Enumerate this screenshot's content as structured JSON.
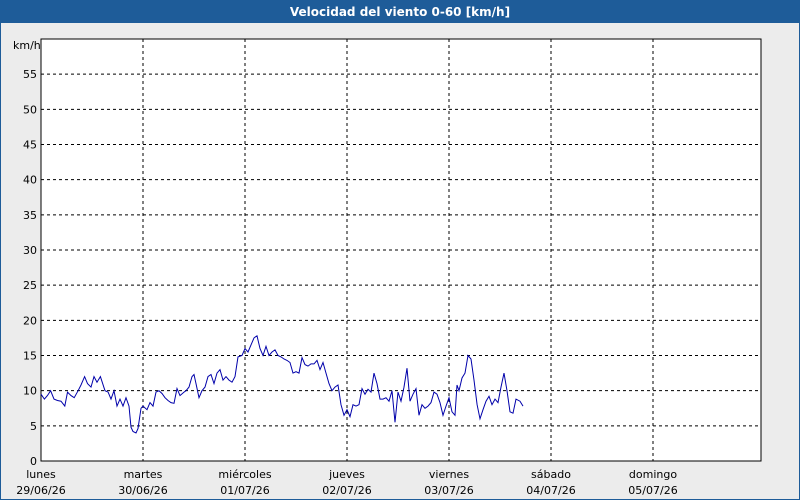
{
  "title": "Velocidad del viento 0-60 [km/h]",
  "colors": {
    "title_bg": "#1e5c99",
    "title_text": "#ffffff",
    "background": "#ececec",
    "plot_bg": "#ffffff",
    "series": "#0000aa",
    "grid": "#000000"
  },
  "chart_data": {
    "type": "line",
    "title": "Velocidad del viento 0-60 [km/h]",
    "ylabel": "km/h",
    "xlabel": "",
    "ylim": [
      0,
      60
    ],
    "yticks": [
      0,
      5,
      10,
      15,
      20,
      25,
      30,
      35,
      40,
      45,
      50,
      55
    ],
    "xlim": [
      0,
      7
    ],
    "grid": true,
    "day_labels": [
      {
        "day": "lunes",
        "date": "29/06/26",
        "x": 0
      },
      {
        "day": "martes",
        "date": "30/06/26",
        "x": 1
      },
      {
        "day": "miércoles",
        "date": "01/07/26",
        "x": 2
      },
      {
        "day": "jueves",
        "date": "02/07/26",
        "x": 3
      },
      {
        "day": "viernes",
        "date": "03/07/26",
        "x": 4
      },
      {
        "day": "sábado",
        "date": "04/07/26",
        "x": 5
      },
      {
        "day": "domingo",
        "date": "05/07/26",
        "x": 6
      }
    ],
    "series": [
      {
        "points": [
          [
            0.0,
            9.5
          ],
          [
            0.033,
            8.8
          ],
          [
            0.063,
            9.3
          ],
          [
            0.094,
            10.0
          ],
          [
            0.127,
            8.8
          ],
          [
            0.162,
            8.6
          ],
          [
            0.196,
            8.5
          ],
          [
            0.233,
            7.8
          ],
          [
            0.26,
            9.8
          ],
          [
            0.294,
            9.3
          ],
          [
            0.325,
            9.0
          ],
          [
            0.364,
            10.0
          ],
          [
            0.392,
            10.8
          ],
          [
            0.427,
            12.0
          ],
          [
            0.456,
            11.0
          ],
          [
            0.49,
            10.5
          ],
          [
            0.52,
            12.0
          ],
          [
            0.549,
            11.2
          ],
          [
            0.582,
            12.0
          ],
          [
            0.627,
            10.0
          ],
          [
            0.658,
            9.8
          ],
          [
            0.686,
            8.8
          ],
          [
            0.716,
            10.0
          ],
          [
            0.745,
            7.8
          ],
          [
            0.775,
            8.8
          ],
          [
            0.804,
            7.8
          ],
          [
            0.833,
            9.0
          ],
          [
            0.863,
            7.8
          ],
          [
            0.882,
            4.8
          ],
          [
            0.902,
            4.2
          ],
          [
            0.931,
            4.0
          ],
          [
            0.951,
            4.6
          ],
          [
            0.98,
            7.5
          ],
          [
            1.0,
            7.8
          ],
          [
            1.039,
            7.3
          ],
          [
            1.069,
            8.3
          ],
          [
            1.098,
            7.8
          ],
          [
            1.127,
            9.8
          ],
          [
            1.157,
            10.0
          ],
          [
            1.186,
            9.6
          ],
          [
            1.216,
            9.0
          ],
          [
            1.245,
            8.6
          ],
          [
            1.275,
            8.3
          ],
          [
            1.304,
            8.2
          ],
          [
            1.333,
            10.3
          ],
          [
            1.363,
            9.3
          ],
          [
            1.402,
            9.8
          ],
          [
            1.422,
            10.0
          ],
          [
            1.451,
            10.5
          ],
          [
            1.48,
            12.0
          ],
          [
            1.5,
            12.3
          ],
          [
            1.52,
            11.0
          ],
          [
            1.549,
            9.0
          ],
          [
            1.578,
            10.0
          ],
          [
            1.608,
            10.5
          ],
          [
            1.637,
            12.0
          ],
          [
            1.667,
            12.3
          ],
          [
            1.696,
            11.0
          ],
          [
            1.725,
            12.5
          ],
          [
            1.755,
            13.0
          ],
          [
            1.784,
            11.5
          ],
          [
            1.814,
            12.0
          ],
          [
            1.843,
            11.5
          ],
          [
            1.873,
            11.2
          ],
          [
            1.902,
            12.0
          ],
          [
            1.931,
            14.8
          ],
          [
            1.971,
            15.0
          ],
          [
            2.0,
            16.0
          ],
          [
            2.029,
            15.5
          ],
          [
            2.059,
            16.5
          ],
          [
            2.088,
            17.5
          ],
          [
            2.118,
            17.8
          ],
          [
            2.147,
            16.0
          ],
          [
            2.176,
            15.0
          ],
          [
            2.206,
            16.3
          ],
          [
            2.235,
            15.0
          ],
          [
            2.265,
            15.5
          ],
          [
            2.294,
            15.8
          ],
          [
            2.324,
            15.0
          ],
          [
            2.353,
            14.8
          ],
          [
            2.382,
            14.5
          ],
          [
            2.412,
            14.3
          ],
          [
            2.441,
            14.0
          ],
          [
            2.471,
            12.5
          ],
          [
            2.5,
            12.7
          ],
          [
            2.529,
            12.5
          ],
          [
            2.559,
            14.7
          ],
          [
            2.588,
            13.7
          ],
          [
            2.618,
            13.5
          ],
          [
            2.647,
            13.8
          ],
          [
            2.676,
            13.8
          ],
          [
            2.706,
            14.3
          ],
          [
            2.735,
            13.0
          ],
          [
            2.765,
            14.0
          ],
          [
            2.794,
            12.5
          ],
          [
            2.824,
            11.0
          ],
          [
            2.853,
            10.0
          ],
          [
            2.882,
            10.5
          ],
          [
            2.912,
            10.8
          ],
          [
            2.941,
            8.0
          ],
          [
            2.971,
            6.5
          ],
          [
            3.0,
            7.3
          ],
          [
            3.029,
            6.3
          ],
          [
            3.059,
            8.0
          ],
          [
            3.088,
            7.8
          ],
          [
            3.118,
            8.0
          ],
          [
            3.147,
            10.3
          ],
          [
            3.176,
            9.5
          ],
          [
            3.206,
            10.2
          ],
          [
            3.235,
            9.8
          ],
          [
            3.265,
            12.5
          ],
          [
            3.294,
            11.0
          ],
          [
            3.324,
            8.8
          ],
          [
            3.353,
            8.8
          ],
          [
            3.382,
            9.0
          ],
          [
            3.412,
            8.5
          ],
          [
            3.441,
            10.0
          ],
          [
            3.471,
            5.5
          ],
          [
            3.5,
            9.8
          ],
          [
            3.529,
            8.5
          ],
          [
            3.559,
            10.5
          ],
          [
            3.588,
            13.2
          ],
          [
            3.618,
            8.5
          ],
          [
            3.647,
            9.5
          ],
          [
            3.676,
            10.3
          ],
          [
            3.706,
            6.5
          ],
          [
            3.735,
            8.0
          ],
          [
            3.765,
            7.5
          ],
          [
            3.794,
            7.8
          ],
          [
            3.824,
            8.3
          ],
          [
            3.853,
            9.8
          ],
          [
            3.882,
            9.5
          ],
          [
            3.912,
            8.3
          ],
          [
            3.941,
            6.5
          ],
          [
            3.971,
            7.8
          ],
          [
            4.0,
            9.0
          ],
          [
            4.029,
            7.0
          ],
          [
            4.059,
            6.5
          ],
          [
            4.078,
            10.8
          ],
          [
            4.098,
            10.0
          ],
          [
            4.127,
            11.8
          ],
          [
            4.157,
            12.5
          ],
          [
            4.186,
            15.0
          ],
          [
            4.216,
            14.5
          ],
          [
            4.245,
            11.5
          ],
          [
            4.275,
            8.0
          ],
          [
            4.304,
            6.0
          ],
          [
            4.333,
            7.3
          ],
          [
            4.363,
            8.5
          ],
          [
            4.392,
            9.2
          ],
          [
            4.422,
            8.0
          ],
          [
            4.451,
            8.8
          ],
          [
            4.48,
            8.3
          ],
          [
            4.51,
            10.5
          ],
          [
            4.539,
            12.5
          ],
          [
            4.569,
            10.0
          ],
          [
            4.598,
            7.0
          ],
          [
            4.627,
            6.8
          ],
          [
            4.657,
            8.8
          ],
          [
            4.696,
            8.5
          ],
          [
            4.725,
            7.8
          ]
        ]
      }
    ]
  }
}
